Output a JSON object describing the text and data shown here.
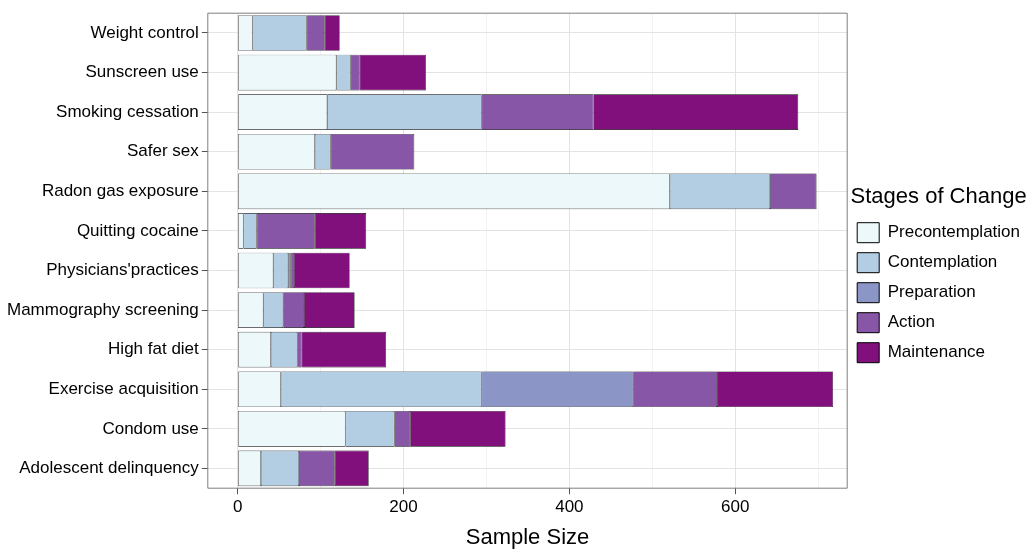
{
  "chart_data": {
    "type": "bar",
    "orientation": "horizontal",
    "stacked": true,
    "xlabel": "Sample Size",
    "legend_title": "Stages of Change",
    "legend": "right",
    "grid": true,
    "categories": [
      "Weight control",
      "Sunscreen use",
      "Smoking cessation",
      "Safer sex",
      "Radon gas exposure",
      "Quitting cocaine",
      "Physicians'practices",
      "Mammography screening",
      "High fat diet",
      "Exercise acquisition",
      "Condom use",
      "Adolescent delinquency"
    ],
    "xlim": [
      -36,
      735
    ],
    "xticks": [
      0,
      {
        "value": 100,
        "label": null
      },
      200,
      {
        "value": 300,
        "label": null
      },
      400,
      {
        "value": 500,
        "label": null
      },
      600,
      {
        "value": 700,
        "label": null
      }
    ],
    "series": [
      {
        "name": "Precontemplation",
        "color": "#edf8fb",
        "values": [
          18,
          119,
          108,
          93,
          521,
          7,
          43,
          31,
          40,
          52,
          130,
          28
        ]
      },
      {
        "name": "Contemplation",
        "color": "#b3cde3",
        "values": [
          65,
          17,
          186,
          19,
          121,
          16,
          18,
          24,
          32,
          242,
          59,
          46
        ]
      },
      {
        "name": "Preparation",
        "color": "#8c96c6",
        "values": [
          0,
          0,
          0,
          0,
          0,
          0,
          3,
          0,
          0,
          183,
          0,
          0
        ]
      },
      {
        "name": "Action",
        "color": "#8856a7",
        "values": [
          22,
          11,
          135,
          101,
          56,
          70,
          4,
          25,
          5,
          101,
          19,
          43
        ]
      },
      {
        "name": "Maintenance",
        "color": "#810f7c",
        "values": [
          18,
          80,
          247,
          0,
          0,
          62,
          67,
          61,
          102,
          140,
          115,
          41
        ]
      }
    ]
  }
}
